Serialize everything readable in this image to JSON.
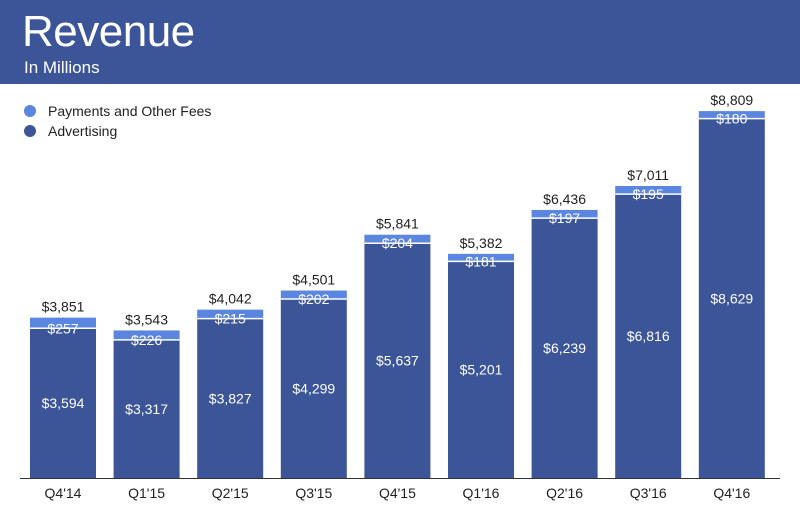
{
  "header": {
    "title": "Revenue",
    "subtitle": "In Millions"
  },
  "colors": {
    "header_bg": "#3b5598",
    "advertising": "#3b5598",
    "payments": "#5b86e0"
  },
  "chart_data": {
    "type": "bar",
    "stacked": true,
    "title": "Revenue",
    "subtitle": "In Millions",
    "legend_position": "top-left",
    "grid": false,
    "ylim": [
      0,
      9000
    ],
    "categories": [
      "Q4'14",
      "Q1'15",
      "Q2'15",
      "Q3'15",
      "Q4'15",
      "Q1'16",
      "Q2'16",
      "Q3'16",
      "Q4'16"
    ],
    "series": [
      {
        "name": "Advertising",
        "values": [
          3594,
          3317,
          3827,
          4299,
          5637,
          5201,
          6239,
          6816,
          8629
        ],
        "labels": [
          "$3,594",
          "$3,317",
          "$3,827",
          "$4,299",
          "$5,637",
          "$5,201",
          "$6,239",
          "$6,816",
          "$8,629"
        ]
      },
      {
        "name": "Payments and Other Fees",
        "values": [
          257,
          226,
          215,
          202,
          204,
          181,
          197,
          195,
          180
        ],
        "labels": [
          "$257",
          "$226",
          "$215",
          "$202",
          "$204",
          "$181",
          "$197",
          "$195",
          "$180"
        ]
      }
    ],
    "totals": [
      3851,
      3543,
      4042,
      4501,
      5841,
      5382,
      6436,
      7011,
      8809
    ],
    "total_labels": [
      "$3,851",
      "$3,543",
      "$4,042",
      "$4,501",
      "$5,841",
      "$5,382",
      "$6,436",
      "$7,011",
      "$8,809"
    ]
  }
}
